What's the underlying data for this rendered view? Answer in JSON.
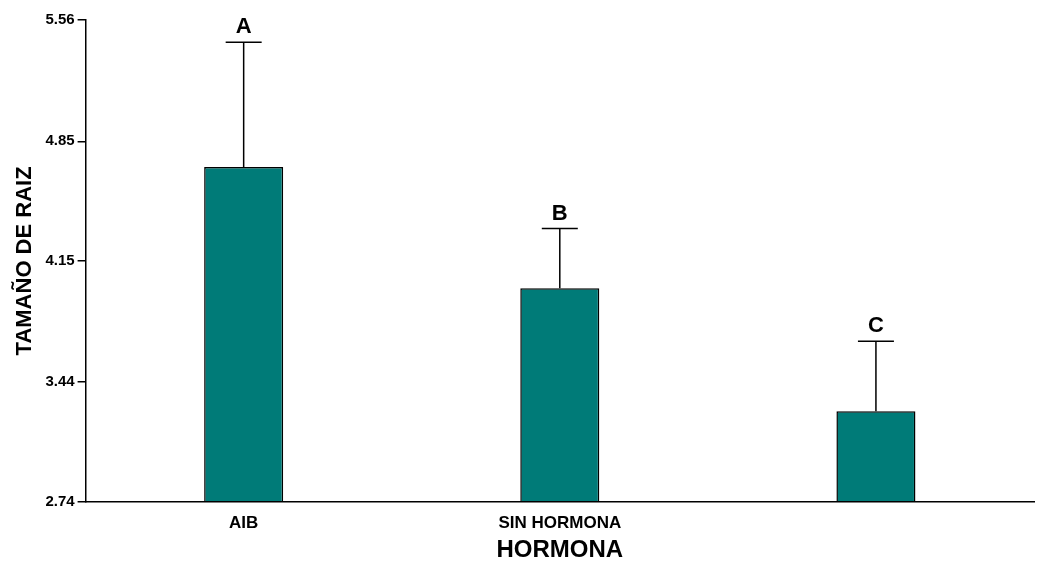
{
  "chart_data": {
    "type": "bar",
    "xlabel": "HORMONA",
    "ylabel": "TAMAÑO DE RAIZ",
    "categories": [
      "AIB",
      "SIN HORMONA",
      null
    ],
    "values": [
      4.7,
      3.99,
      3.27
    ],
    "errors": [
      [
        4.7,
        5.43
      ],
      [
        3.99,
        4.34
      ],
      [
        3.27,
        3.68
      ]
    ],
    "color": "#007b78",
    "ylim": [
      2.74,
      5.56
    ],
    "yticks": [
      2.74,
      3.44,
      4.15,
      4.85,
      5.56
    ],
    "grid": false,
    "legend": false,
    "annotations": [
      {
        "text": "A",
        "x": "AIB",
        "y": 5.43
      },
      {
        "text": "B",
        "x": "SIN HORMONA",
        "y": 4.34
      },
      {
        "text": "C",
        "y": 3.68
      }
    ]
  }
}
